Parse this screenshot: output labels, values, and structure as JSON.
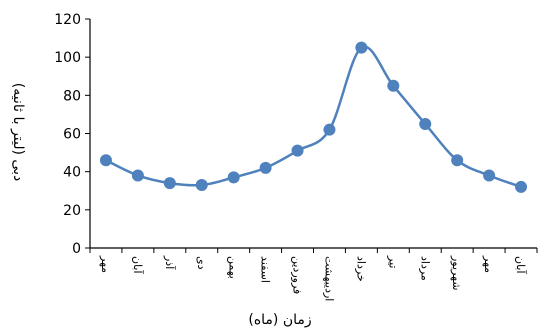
{
  "chart_data": {
    "type": "line",
    "xlabel": "زمان (ماه)",
    "ylabel": "دبی (لیتر با ثانیه)",
    "ylim": [
      0,
      120
    ],
    "yticks": [
      0,
      20,
      40,
      60,
      80,
      100,
      120
    ],
    "categories": [
      "مهر",
      "آبان",
      "آذر",
      "دی",
      "بهمن",
      "اسفند",
      "فروردین",
      "اردیبهشت",
      "خرداد",
      "تیر",
      "مرداد",
      "شهریور",
      "مهر",
      "آبان"
    ],
    "series": [
      {
        "values": [
          46,
          38,
          34,
          33,
          37,
          42,
          51,
          62,
          105,
          85,
          65,
          46,
          38,
          32
        ],
        "color": "#4f81bd"
      }
    ],
    "grid": false,
    "smooth": true
  }
}
